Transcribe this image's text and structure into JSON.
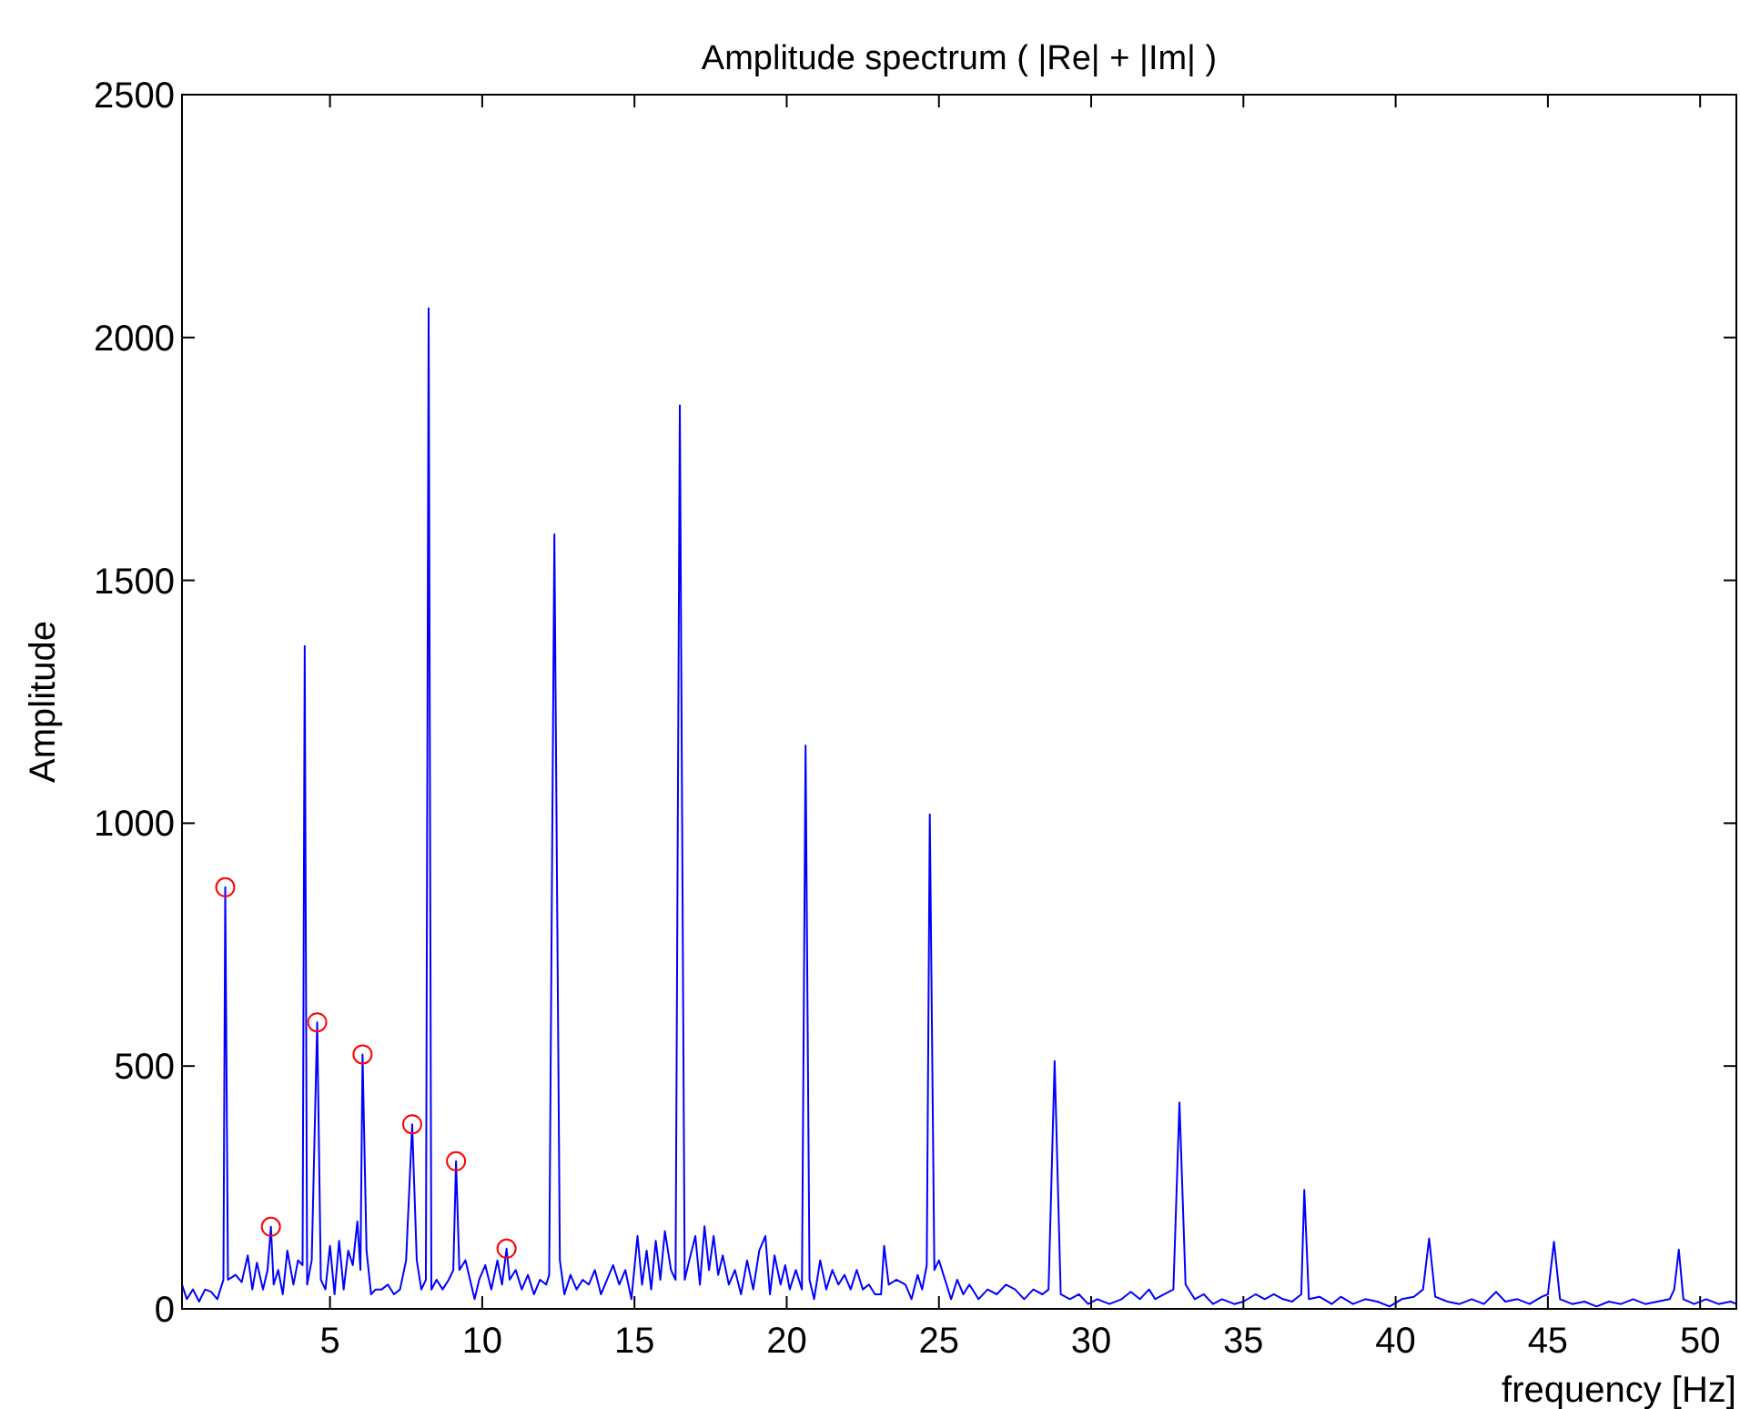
{
  "chart_data": {
    "type": "line",
    "title": "Amplitude spectrum ( |Re| + |Im| )",
    "xlabel": "frequency [Hz]",
    "ylabel": "Amplitude",
    "xlim": [
      0.14,
      51.19
    ],
    "xticks": [
      5,
      10,
      15,
      20,
      25,
      30,
      35,
      40,
      45,
      50
    ],
    "ylim": [
      0,
      2500
    ],
    "yticks": [
      0,
      500,
      1000,
      1500,
      2000,
      2500
    ],
    "grid": false,
    "series": [
      {
        "color": "#0000ff",
        "x": [
          0.14,
          0.3,
          0.5,
          0.7,
          0.9,
          1.1,
          1.3,
          1.5,
          1.56,
          1.65,
          1.9,
          2.1,
          2.3,
          2.45,
          2.6,
          2.8,
          2.95,
          3.06,
          3.15,
          3.3,
          3.45,
          3.6,
          3.8,
          3.95,
          4.1,
          4.17,
          4.25,
          4.4,
          4.58,
          4.7,
          4.85,
          5.0,
          5.15,
          5.3,
          5.45,
          5.6,
          5.75,
          5.9,
          6.0,
          6.07,
          6.2,
          6.35,
          6.5,
          6.7,
          6.9,
          7.1,
          7.3,
          7.5,
          7.7,
          7.85,
          8.0,
          8.15,
          8.24,
          8.33,
          8.5,
          8.7,
          8.9,
          9.05,
          9.14,
          9.25,
          9.45,
          9.6,
          9.75,
          9.9,
          10.1,
          10.3,
          10.5,
          10.65,
          10.8,
          10.9,
          11.1,
          11.3,
          11.5,
          11.7,
          11.9,
          12.1,
          12.2,
          12.37,
          12.55,
          12.7,
          12.9,
          13.1,
          13.3,
          13.5,
          13.7,
          13.9,
          14.1,
          14.3,
          14.5,
          14.7,
          14.9,
          15.1,
          15.25,
          15.4,
          15.55,
          15.7,
          15.85,
          16.0,
          16.2,
          16.35,
          16.49,
          16.65,
          16.8,
          17.0,
          17.15,
          17.3,
          17.45,
          17.6,
          17.75,
          17.9,
          18.1,
          18.3,
          18.5,
          18.7,
          18.9,
          19.1,
          19.3,
          19.45,
          19.6,
          19.8,
          19.95,
          20.1,
          20.3,
          20.5,
          20.62,
          20.75,
          20.9,
          21.1,
          21.3,
          21.5,
          21.7,
          21.9,
          22.1,
          22.3,
          22.5,
          22.7,
          22.9,
          23.1,
          23.2,
          23.35,
          23.6,
          23.9,
          24.1,
          24.3,
          24.45,
          24.6,
          24.7,
          24.85,
          25.0,
          25.2,
          25.4,
          25.6,
          25.8,
          26.0,
          26.3,
          26.6,
          26.9,
          27.2,
          27.5,
          27.8,
          28.1,
          28.4,
          28.6,
          28.8,
          29.0,
          29.3,
          29.6,
          29.9,
          30.2,
          30.6,
          31.0,
          31.3,
          31.6,
          31.9,
          32.1,
          32.4,
          32.7,
          32.9,
          33.1,
          33.4,
          33.7,
          34.0,
          34.3,
          34.7,
          35.0,
          35.4,
          35.7,
          36.0,
          36.3,
          36.6,
          36.9,
          37.0,
          37.15,
          37.5,
          37.9,
          38.2,
          38.6,
          39.0,
          39.4,
          39.8,
          40.2,
          40.6,
          40.9,
          41.1,
          41.3,
          41.7,
          42.1,
          42.5,
          42.9,
          43.3,
          43.6,
          44.0,
          44.4,
          44.8,
          45.0,
          45.2,
          45.4,
          45.8,
          46.2,
          46.6,
          47.0,
          47.4,
          47.8,
          48.2,
          48.6,
          49.0,
          49.15,
          49.3,
          49.45,
          49.8,
          50.2,
          50.6,
          51.0,
          51.19
        ],
        "values": [
          50,
          20,
          40,
          15,
          40,
          35,
          20,
          60,
          868,
          60,
          70,
          55,
          110,
          40,
          95,
          40,
          80,
          169,
          50,
          80,
          30,
          120,
          50,
          100,
          90,
          1365,
          50,
          100,
          590,
          60,
          40,
          130,
          30,
          140,
          40,
          120,
          90,
          180,
          80,
          524,
          120,
          30,
          40,
          40,
          50,
          30,
          40,
          100,
          380,
          100,
          40,
          60,
          2060,
          40,
          60,
          40,
          60,
          80,
          304,
          80,
          100,
          60,
          20,
          60,
          90,
          40,
          100,
          50,
          124,
          60,
          80,
          40,
          70,
          30,
          60,
          50,
          70,
          1595,
          100,
          30,
          70,
          40,
          60,
          50,
          80,
          30,
          60,
          90,
          50,
          80,
          20,
          150,
          50,
          120,
          40,
          140,
          60,
          160,
          80,
          60,
          1860,
          60,
          100,
          150,
          50,
          170,
          80,
          150,
          70,
          110,
          50,
          80,
          30,
          100,
          40,
          120,
          150,
          30,
          110,
          50,
          90,
          40,
          80,
          40,
          1160,
          60,
          20,
          100,
          40,
          80,
          50,
          70,
          40,
          80,
          40,
          50,
          30,
          30,
          130,
          50,
          60,
          50,
          20,
          70,
          40,
          90,
          1018,
          80,
          100,
          60,
          20,
          60,
          30,
          50,
          20,
          40,
          30,
          50,
          40,
          20,
          40,
          30,
          40,
          510,
          30,
          20,
          30,
          10,
          20,
          10,
          20,
          35,
          20,
          40,
          20,
          30,
          40,
          425,
          50,
          20,
          30,
          10,
          20,
          10,
          15,
          30,
          20,
          30,
          20,
          15,
          30,
          245,
          20,
          25,
          10,
          25,
          10,
          20,
          15,
          5,
          20,
          25,
          40,
          145,
          25,
          15,
          10,
          20,
          10,
          35,
          15,
          20,
          10,
          25,
          30,
          138,
          20,
          10,
          15,
          5,
          15,
          10,
          20,
          10,
          15,
          20,
          40,
          122,
          20,
          10,
          20,
          10,
          15,
          10
        ]
      },
      {
        "type": "scatter",
        "color": "#ff0000",
        "marker": "circle",
        "x": [
          1.56,
          3.06,
          4.58,
          6.07,
          7.7,
          9.14,
          10.8
        ],
        "values": [
          868,
          169,
          590,
          524,
          380,
          304,
          124
        ]
      }
    ]
  }
}
